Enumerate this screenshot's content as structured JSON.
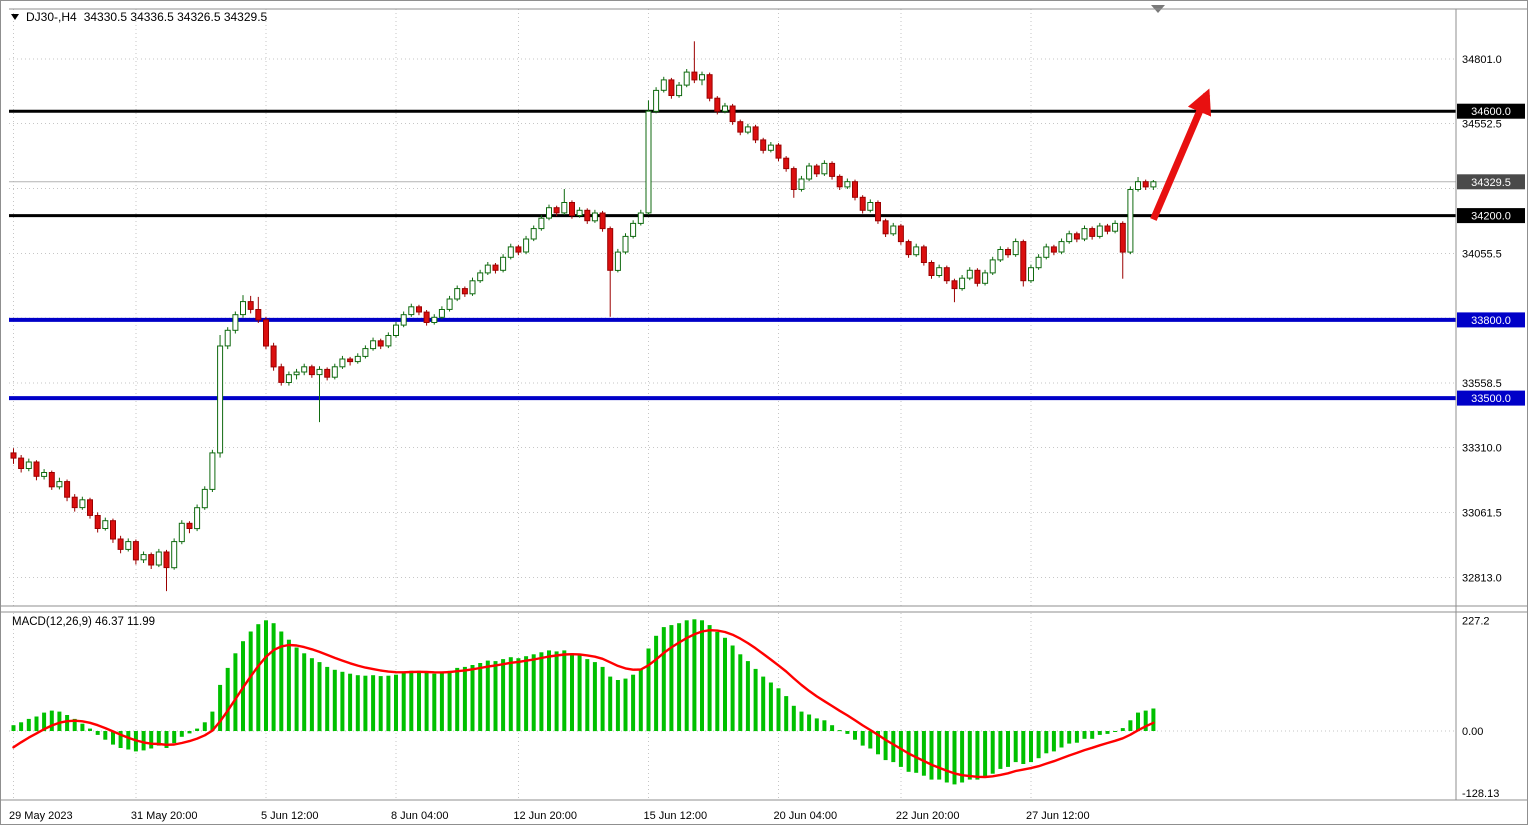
{
  "header": {
    "symbol_period": "DJ30-,H4",
    "ohlc_values": "34330.5 34336.5 34326.5 34329.5"
  },
  "macd_label": "MACD(12,26,9) 46.37 11.99",
  "icons": {
    "title_marker": "triangle-down",
    "shift_marker": "triangle-down"
  },
  "colors": {
    "up_fill": "#ffffff",
    "up_stroke": "#0f6a0f",
    "down_fill": "#db0f0f",
    "down_stroke": "#9b0000",
    "level_black": "#000000",
    "level_blue": "#0000c8",
    "price_line": "#b3b3b3",
    "hist_green": "#00c000",
    "signal_red": "#ff0000",
    "arrow_red": "#e81010",
    "grid": "#c6c6c6",
    "border": "#8f8f8f"
  },
  "chart_data": [
    {
      "type": "candlestick",
      "symbol": "DJ30-",
      "period": "H4",
      "open": 34330.5,
      "high": 34336.5,
      "low": 34326.5,
      "close": 34329.5,
      "ylim": [
        32703,
        34992
      ],
      "grid_on": true,
      "grid_levels": [
        34801,
        34552.5,
        34304,
        34055.5,
        33807,
        33558.5,
        33310,
        33061.5,
        32813
      ],
      "y_axis_labels": [
        34801,
        34552.5,
        34055.5,
        33558.5,
        33310,
        33061.5,
        32813
      ],
      "price_badges": [
        {
          "label": "34600.0",
          "price": 34600,
          "bg": "#000000"
        },
        {
          "label": "34329.5",
          "price": 34329.5,
          "bg": "#4a4a4a"
        },
        {
          "label": "34200.0",
          "price": 34200,
          "bg": "#000000"
        },
        {
          "label": "33800.0",
          "price": 33800,
          "bg": "#0000c8"
        },
        {
          "label": "33500.0",
          "price": 33500,
          "bg": "#0000c8"
        }
      ],
      "hlines": [
        {
          "price": 34600,
          "color": "#000000",
          "width": 3
        },
        {
          "price": 34200,
          "color": "#000000",
          "width": 3
        },
        {
          "price": 33800,
          "color": "#0000c8",
          "width": 4
        },
        {
          "price": 33500,
          "color": "#0000c8",
          "width": 4
        },
        {
          "price": 34329.5,
          "color": "#b3b3b3",
          "width": 1
        }
      ],
      "x_labels": [
        {
          "label": "29 May 2023",
          "index": 0
        },
        {
          "label": "31 May 20:00",
          "index": 16
        },
        {
          "label": "5 Jun 12:00",
          "index": 33
        },
        {
          "label": "8 Jun 04:00",
          "index": 50
        },
        {
          "label": "12 Jun 20:00",
          "index": 66
        },
        {
          "label": "15 Jun 12:00",
          "index": 83
        },
        {
          "label": "20 Jun 04:00",
          "index": 100
        },
        {
          "label": "22 Jun 20:00",
          "index": 116
        },
        {
          "label": "27 Jun 12:00",
          "index": 133
        }
      ],
      "arrow": {
        "from_index": 149,
        "from_price": 34185,
        "to_index": 156,
        "to_price": 34665
      },
      "candles": [
        [
          33290,
          33308,
          33248,
          33270
        ],
        [
          33270,
          33282,
          33215,
          33230
        ],
        [
          33230,
          33268,
          33220,
          33255
        ],
        [
          33255,
          33262,
          33185,
          33200
        ],
        [
          33200,
          33228,
          33188,
          33215
        ],
        [
          33215,
          33222,
          33148,
          33160
        ],
        [
          33160,
          33195,
          33150,
          33180
        ],
        [
          33180,
          33188,
          33105,
          33120
        ],
        [
          33120,
          33132,
          33065,
          33080
        ],
        [
          33080,
          33122,
          33072,
          33110
        ],
        [
          33110,
          33118,
          33038,
          33050
        ],
        [
          33050,
          33062,
          32985,
          33000
        ],
        [
          33000,
          33042,
          32992,
          33030
        ],
        [
          33030,
          33038,
          32945,
          32960
        ],
        [
          32960,
          32972,
          32905,
          32920
        ],
        [
          32920,
          32962,
          32912,
          32950
        ],
        [
          32950,
          32958,
          32862,
          32880
        ],
        [
          32880,
          32912,
          32868,
          32900
        ],
        [
          32900,
          32908,
          32845,
          32860
        ],
        [
          32860,
          32922,
          32852,
          32910
        ],
        [
          32910,
          32918,
          32760,
          32850
        ],
        [
          32850,
          32962,
          32842,
          32950
        ],
        [
          32950,
          33032,
          32940,
          33020
        ],
        [
          33020,
          33028,
          32982,
          33000
        ],
        [
          33000,
          33092,
          32990,
          33080
        ],
        [
          33080,
          33162,
          33072,
          33150
        ],
        [
          33150,
          33302,
          33140,
          33290
        ],
        [
          33290,
          33742,
          33272,
          33700
        ],
        [
          33700,
          33772,
          33688,
          33760
        ],
        [
          33760,
          33832,
          33748,
          33820
        ],
        [
          33820,
          33895,
          33808,
          33870
        ],
        [
          33870,
          33892,
          33825,
          33840
        ],
        [
          33840,
          33888,
          33788,
          33800
        ],
        [
          33800,
          33812,
          33688,
          33700
        ],
        [
          33700,
          33712,
          33605,
          33620
        ],
        [
          33620,
          33632,
          33548,
          33560
        ],
        [
          33560,
          33602,
          33548,
          33590
        ],
        [
          33590,
          33612,
          33572,
          33600
        ],
        [
          33600,
          33632,
          33588,
          33620
        ],
        [
          33620,
          33628,
          33578,
          33590
        ],
        [
          33590,
          33622,
          33408,
          33610
        ],
        [
          33610,
          33618,
          33568,
          33580
        ],
        [
          33580,
          33632,
          33572,
          33620
        ],
        [
          33620,
          33662,
          33612,
          33650
        ],
        [
          33650,
          33658,
          33625,
          33640
        ],
        [
          33640,
          33672,
          33632,
          33660
        ],
        [
          33660,
          33702,
          33652,
          33690
        ],
        [
          33690,
          33732,
          33682,
          33720
        ],
        [
          33720,
          33728,
          33688,
          33700
        ],
        [
          33700,
          33752,
          33692,
          33740
        ],
        [
          33740,
          33792,
          33732,
          33780
        ],
        [
          33780,
          33832,
          33772,
          33820
        ],
        [
          33820,
          33862,
          33812,
          33850
        ],
        [
          33850,
          33858,
          33818,
          33830
        ],
        [
          33830,
          33838,
          33778,
          33790
        ],
        [
          33790,
          33822,
          33782,
          33810
        ],
        [
          33810,
          33852,
          33802,
          33840
        ],
        [
          33840,
          33892,
          33832,
          33880
        ],
        [
          33880,
          33932,
          33872,
          33920
        ],
        [
          33920,
          33928,
          33888,
          33900
        ],
        [
          33900,
          33962,
          33892,
          33950
        ],
        [
          33950,
          33992,
          33942,
          33980
        ],
        [
          33980,
          34022,
          33972,
          34010
        ],
        [
          34010,
          34018,
          33978,
          33990
        ],
        [
          33990,
          34052,
          33982,
          34040
        ],
        [
          34040,
          34092,
          34032,
          34080
        ],
        [
          34080,
          34088,
          34048,
          34060
        ],
        [
          34060,
          34122,
          34052,
          34110
        ],
        [
          34110,
          34162,
          34102,
          34150
        ],
        [
          34150,
          34202,
          34142,
          34190
        ],
        [
          34190,
          34242,
          34182,
          34230
        ],
        [
          34230,
          34238,
          34198,
          34210
        ],
        [
          34210,
          34302,
          34202,
          34250
        ],
        [
          34250,
          34258,
          34188,
          34200
        ],
        [
          34200,
          34232,
          34192,
          34220
        ],
        [
          34220,
          34228,
          34168,
          34180
        ],
        [
          34180,
          34222,
          34172,
          34210
        ],
        [
          34210,
          34218,
          34138,
          34150
        ],
        [
          34150,
          34158,
          33812,
          33990
        ],
        [
          33990,
          34072,
          33982,
          34060
        ],
        [
          34060,
          34132,
          34052,
          34120
        ],
        [
          34120,
          34182,
          34112,
          34170
        ],
        [
          34170,
          34222,
          34162,
          34210
        ],
        [
          34210,
          34642,
          34202,
          34600
        ],
        [
          34600,
          34692,
          34592,
          34680
        ],
        [
          34680,
          34732,
          34672,
          34720
        ],
        [
          34720,
          34728,
          34648,
          34660
        ],
        [
          34660,
          34712,
          34652,
          34700
        ],
        [
          34700,
          34762,
          34692,
          34750
        ],
        [
          34750,
          34868,
          34708,
          34720
        ],
        [
          34720,
          34752,
          34700,
          34740
        ],
        [
          34740,
          34748,
          34638,
          34650
        ],
        [
          34650,
          34658,
          34588,
          34600
        ],
        [
          34600,
          34632,
          34592,
          34620
        ],
        [
          34620,
          34628,
          34548,
          34560
        ],
        [
          34560,
          34568,
          34508,
          34520
        ],
        [
          34520,
          34552,
          34512,
          34540
        ],
        [
          34540,
          34548,
          34478,
          34490
        ],
        [
          34490,
          34498,
          34438,
          34450
        ],
        [
          34450,
          34482,
          34442,
          34470
        ],
        [
          34470,
          34478,
          34408,
          34420
        ],
        [
          34420,
          34428,
          34368,
          34380
        ],
        [
          34380,
          34388,
          34268,
          34300
        ],
        [
          34300,
          34352,
          34292,
          34340
        ],
        [
          34340,
          34402,
          34332,
          34390
        ],
        [
          34390,
          34398,
          34348,
          34360
        ],
        [
          34360,
          34412,
          34352,
          34400
        ],
        [
          34400,
          34408,
          34338,
          34350
        ],
        [
          34350,
          34358,
          34298,
          34310
        ],
        [
          34310,
          34342,
          34302,
          34330
        ],
        [
          34330,
          34338,
          34258,
          34270
        ],
        [
          34270,
          34278,
          34208,
          34220
        ],
        [
          34220,
          34262,
          34212,
          34250
        ],
        [
          34250,
          34258,
          34168,
          34180
        ],
        [
          34180,
          34188,
          34118,
          34130
        ],
        [
          34130,
          34172,
          34122,
          34160
        ],
        [
          34160,
          34168,
          34088,
          34100
        ],
        [
          34100,
          34108,
          34038,
          34050
        ],
        [
          34050,
          34092,
          34042,
          34080
        ],
        [
          34080,
          34088,
          34008,
          34020
        ],
        [
          34020,
          34028,
          33958,
          33970
        ],
        [
          33970,
          34012,
          33962,
          34000
        ],
        [
          34000,
          34008,
          33938,
          33950
        ],
        [
          33950,
          33958,
          33868,
          33920
        ],
        [
          33920,
          33972,
          33912,
          33960
        ],
        [
          33960,
          34002,
          33952,
          33990
        ],
        [
          33990,
          33998,
          33928,
          33940
        ],
        [
          33940,
          33992,
          33932,
          33980
        ],
        [
          33980,
          34042,
          33972,
          34030
        ],
        [
          34030,
          34082,
          34022,
          34070
        ],
        [
          34070,
          34078,
          34038,
          34050
        ],
        [
          34050,
          34112,
          34042,
          34100
        ],
        [
          34100,
          34108,
          33928,
          33950
        ],
        [
          33950,
          34012,
          33942,
          34000
        ],
        [
          34000,
          34052,
          33992,
          34040
        ],
        [
          34040,
          34092,
          34032,
          34080
        ],
        [
          34080,
          34088,
          34048,
          34060
        ],
        [
          34060,
          34112,
          34052,
          34100
        ],
        [
          34100,
          34142,
          34092,
          34130
        ],
        [
          34130,
          34138,
          34098,
          34110
        ],
        [
          34110,
          34162,
          34102,
          34150
        ],
        [
          34150,
          34158,
          34108,
          34120
        ],
        [
          34120,
          34172,
          34112,
          34160
        ],
        [
          34160,
          34168,
          34128,
          34140
        ],
        [
          34140,
          34182,
          34132,
          34170
        ],
        [
          34170,
          34178,
          33958,
          34060
        ],
        [
          34060,
          34312,
          34052,
          34300
        ],
        [
          34300,
          34348,
          34292,
          34330
        ],
        [
          34330,
          34338,
          34298,
          34310
        ],
        [
          34310,
          34336.5,
          34298,
          34329.5
        ]
      ]
    },
    {
      "type": "bar",
      "name": "MACD",
      "params": "12,26,9",
      "current_macd": 46.37,
      "current_signal": 11.99,
      "ylim": [
        -142,
        243
      ],
      "y_ticks": [
        {
          "label": "227.2",
          "value": 227.2
        },
        {
          "label": "0.00",
          "value": 0
        },
        {
          "label": "-128.13",
          "value": -128.13
        }
      ],
      "signal_ema_period": 9,
      "signal_seed": -45,
      "histogram": [
        12,
        18,
        25,
        30,
        38,
        42,
        40,
        33,
        25,
        15,
        5,
        -8,
        -18,
        -28,
        -35,
        -38,
        -42,
        -40,
        -36,
        -30,
        -35,
        -25,
        -12,
        -5,
        5,
        18,
        40,
        95,
        130,
        160,
        185,
        205,
        220,
        228,
        222,
        205,
        188,
        172,
        160,
        150,
        142,
        132,
        126,
        122,
        118,
        115,
        114,
        115,
        113,
        114,
        116,
        120,
        124,
        124,
        120,
        118,
        120,
        124,
        130,
        132,
        136,
        140,
        145,
        144,
        148,
        152,
        150,
        154,
        158,
        162,
        166,
        164,
        166,
        160,
        156,
        148,
        142,
        132,
        112,
        105,
        108,
        116,
        128,
        170,
        196,
        214,
        218,
        222,
        228,
        230,
        228,
        218,
        204,
        192,
        176,
        158,
        144,
        128,
        112,
        100,
        88,
        72,
        52,
        40,
        34,
        26,
        22,
        12,
        2,
        -6,
        -18,
        -30,
        -36,
        -48,
        -60,
        -64,
        -74,
        -84,
        -86,
        -92,
        -100,
        -100,
        -106,
        -110,
        -106,
        -100,
        -100,
        -96,
        -88,
        -78,
        -74,
        -64,
        -68,
        -64,
        -56,
        -46,
        -42,
        -34,
        -26,
        -24,
        -16,
        -16,
        -8,
        -6,
        -2,
        6,
        22,
        38,
        42,
        46.37
      ]
    }
  ]
}
